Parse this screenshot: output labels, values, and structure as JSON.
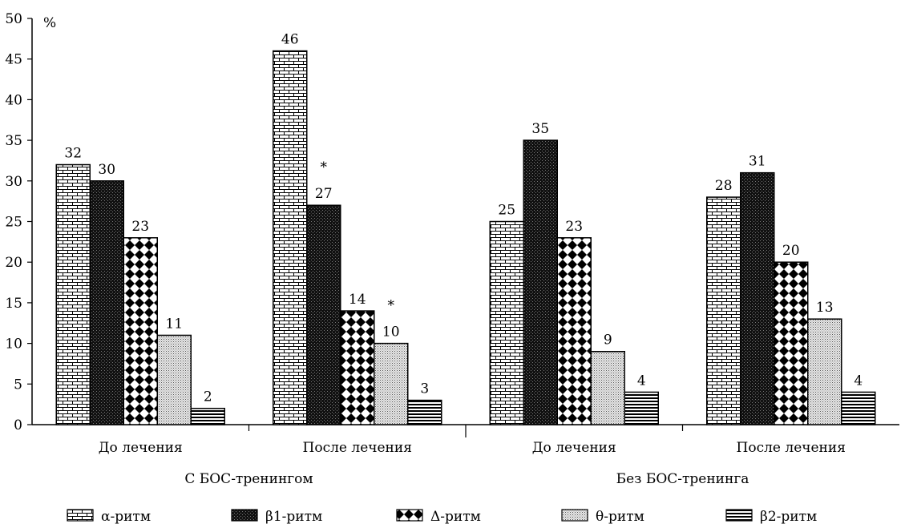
{
  "chart_data": {
    "type": "bar",
    "y_unit": "%",
    "ylim": [
      0,
      50
    ],
    "yticks": [
      0,
      5,
      10,
      15,
      20,
      25,
      30,
      35,
      40,
      45,
      50
    ],
    "grid": false,
    "legend_position": "bottom",
    "groups": [
      {
        "label": "С БОС-тренингом",
        "categories": [
          "До лечения",
          "После лечения"
        ]
      },
      {
        "label": "Без БОС-тренинга",
        "categories": [
          "До лечения",
          "После лечения"
        ]
      }
    ],
    "series": [
      {
        "name": "α-ритм",
        "pattern": "brick",
        "values": [
          32,
          46,
          25,
          28
        ],
        "marks": [
          "",
          "",
          "",
          ""
        ]
      },
      {
        "name": "β1-ритм",
        "pattern": "dark-check",
        "values": [
          30,
          27,
          35,
          31
        ],
        "marks": [
          "",
          "*",
          "",
          ""
        ]
      },
      {
        "name": "Δ-ритм",
        "pattern": "diamond",
        "values": [
          23,
          14,
          23,
          20
        ],
        "marks": [
          "",
          "",
          "",
          ""
        ]
      },
      {
        "name": "θ-ритм",
        "pattern": "dots",
        "values": [
          11,
          10,
          9,
          13
        ],
        "marks": [
          "",
          "*",
          "",
          ""
        ]
      },
      {
        "name": "β2-ритм",
        "pattern": "h-lines",
        "values": [
          2,
          3,
          4,
          4
        ],
        "marks": [
          "",
          "",
          "",
          ""
        ]
      }
    ],
    "colors": {
      "ink": "#000000",
      "background": "#ffffff"
    }
  }
}
